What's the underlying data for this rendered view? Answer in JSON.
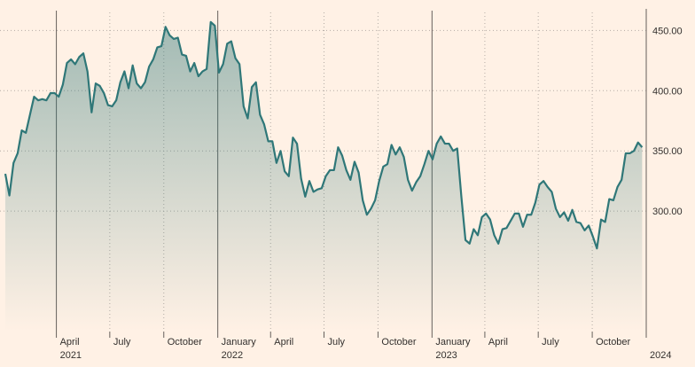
{
  "chart_data": {
    "type": "area",
    "title": "",
    "xlabel": "",
    "ylabel": "",
    "y_axis_side": "right",
    "ylim": [
      200,
      465
    ],
    "yticks": [
      {
        "value": 300,
        "label": "300.00"
      },
      {
        "value": 350,
        "label": "350.00"
      },
      {
        "value": 400,
        "label": "400.00"
      },
      {
        "value": 450,
        "label": "450.00"
      }
    ],
    "xlim": [
      "2021-01-01",
      "2024-01-01"
    ],
    "x_ticks": [
      {
        "date": "2021-04-01",
        "label": "April",
        "year": "2021"
      },
      {
        "date": "2021-07-01",
        "label": "July",
        "year": ""
      },
      {
        "date": "2021-10-01",
        "label": "October",
        "year": ""
      },
      {
        "date": "2022-01-01",
        "label": "January",
        "year": "2022"
      },
      {
        "date": "2022-04-01",
        "label": "April",
        "year": ""
      },
      {
        "date": "2022-07-01",
        "label": "July",
        "year": ""
      },
      {
        "date": "2022-10-01",
        "label": "October",
        "year": ""
      },
      {
        "date": "2023-01-01",
        "label": "January",
        "year": "2023"
      },
      {
        "date": "2023-04-01",
        "label": "April",
        "year": ""
      },
      {
        "date": "2023-07-01",
        "label": "July",
        "year": ""
      },
      {
        "date": "2023-10-01",
        "label": "October",
        "year": ""
      },
      {
        "date": "2024-01-01",
        "label": "",
        "year": "2024"
      }
    ],
    "series": [
      {
        "name": "",
        "color": "#2f7778",
        "points": [
          [
            "2021-01-04",
            331
          ],
          [
            "2021-01-11",
            313
          ],
          [
            "2021-01-18",
            340
          ],
          [
            "2021-01-25",
            348
          ],
          [
            "2021-02-01",
            367
          ],
          [
            "2021-02-08",
            365
          ],
          [
            "2021-02-15",
            380
          ],
          [
            "2021-02-22",
            395
          ],
          [
            "2021-03-01",
            392
          ],
          [
            "2021-03-08",
            393
          ],
          [
            "2021-03-15",
            392
          ],
          [
            "2021-03-22",
            398
          ],
          [
            "2021-03-29",
            398
          ],
          [
            "2021-04-05",
            395
          ],
          [
            "2021-04-12",
            405
          ],
          [
            "2021-04-19",
            423
          ],
          [
            "2021-04-26",
            426
          ],
          [
            "2021-05-03",
            422
          ],
          [
            "2021-05-10",
            428
          ],
          [
            "2021-05-17",
            431
          ],
          [
            "2021-05-24",
            416
          ],
          [
            "2021-05-31",
            382
          ],
          [
            "2021-06-07",
            406
          ],
          [
            "2021-06-14",
            404
          ],
          [
            "2021-06-21",
            398
          ],
          [
            "2021-06-28",
            388
          ],
          [
            "2021-07-05",
            387
          ],
          [
            "2021-07-12",
            392
          ],
          [
            "2021-07-19",
            407
          ],
          [
            "2021-07-26",
            416
          ],
          [
            "2021-08-02",
            402
          ],
          [
            "2021-08-09",
            421
          ],
          [
            "2021-08-16",
            406
          ],
          [
            "2021-08-23",
            402
          ],
          [
            "2021-08-30",
            407
          ],
          [
            "2021-09-06",
            420
          ],
          [
            "2021-09-13",
            426
          ],
          [
            "2021-09-20",
            436
          ],
          [
            "2021-09-27",
            437
          ],
          [
            "2021-10-04",
            453
          ],
          [
            "2021-10-11",
            446
          ],
          [
            "2021-10-18",
            443
          ],
          [
            "2021-10-25",
            444
          ],
          [
            "2021-11-01",
            430
          ],
          [
            "2021-11-08",
            429
          ],
          [
            "2021-11-15",
            416
          ],
          [
            "2021-11-22",
            423
          ],
          [
            "2021-11-29",
            412
          ],
          [
            "2021-12-06",
            416
          ],
          [
            "2021-12-13",
            418
          ],
          [
            "2021-12-20",
            457
          ],
          [
            "2021-12-27",
            454
          ],
          [
            "2022-01-03",
            415
          ],
          [
            "2022-01-10",
            422
          ],
          [
            "2022-01-17",
            439
          ],
          [
            "2022-01-24",
            441
          ],
          [
            "2022-01-31",
            427
          ],
          [
            "2022-02-07",
            422
          ],
          [
            "2022-02-14",
            387
          ],
          [
            "2022-02-21",
            377
          ],
          [
            "2022-02-28",
            403
          ],
          [
            "2022-03-07",
            407
          ],
          [
            "2022-03-14",
            380
          ],
          [
            "2022-03-21",
            372
          ],
          [
            "2022-03-28",
            358
          ],
          [
            "2022-04-04",
            358
          ],
          [
            "2022-04-11",
            340
          ],
          [
            "2022-04-18",
            350
          ],
          [
            "2022-04-25",
            333
          ],
          [
            "2022-05-02",
            329
          ],
          [
            "2022-05-09",
            361
          ],
          [
            "2022-05-16",
            356
          ],
          [
            "2022-05-23",
            327
          ],
          [
            "2022-05-30",
            312
          ],
          [
            "2022-06-06",
            325
          ],
          [
            "2022-06-13",
            316
          ],
          [
            "2022-06-20",
            318
          ],
          [
            "2022-06-27",
            319
          ],
          [
            "2022-07-04",
            329
          ],
          [
            "2022-07-11",
            334
          ],
          [
            "2022-07-18",
            334
          ],
          [
            "2022-07-25",
            353
          ],
          [
            "2022-08-01",
            346
          ],
          [
            "2022-08-08",
            334
          ],
          [
            "2022-08-15",
            326
          ],
          [
            "2022-08-22",
            341
          ],
          [
            "2022-08-29",
            332
          ],
          [
            "2022-09-05",
            309
          ],
          [
            "2022-09-12",
            297
          ],
          [
            "2022-09-19",
            302
          ],
          [
            "2022-09-26",
            309
          ],
          [
            "2022-10-03",
            325
          ],
          [
            "2022-10-10",
            337
          ],
          [
            "2022-10-17",
            339
          ],
          [
            "2022-10-24",
            355
          ],
          [
            "2022-10-31",
            347
          ],
          [
            "2022-11-07",
            353
          ],
          [
            "2022-11-14",
            345
          ],
          [
            "2022-11-21",
            326
          ],
          [
            "2022-11-28",
            317
          ],
          [
            "2022-12-05",
            324
          ],
          [
            "2022-12-12",
            329
          ],
          [
            "2022-12-19",
            339
          ],
          [
            "2022-12-26",
            350
          ],
          [
            "2023-01-02",
            343
          ],
          [
            "2023-01-09",
            356
          ],
          [
            "2023-01-16",
            362
          ],
          [
            "2023-01-23",
            356
          ],
          [
            "2023-01-30",
            356
          ],
          [
            "2023-02-06",
            350
          ],
          [
            "2023-02-13",
            352
          ],
          [
            "2023-02-20",
            312
          ],
          [
            "2023-02-27",
            276
          ],
          [
            "2023-03-06",
            273
          ],
          [
            "2023-03-13",
            285
          ],
          [
            "2023-03-20",
            280
          ],
          [
            "2023-03-27",
            295
          ],
          [
            "2023-04-03",
            298
          ],
          [
            "2023-04-10",
            293
          ],
          [
            "2023-04-17",
            280
          ],
          [
            "2023-04-24",
            273
          ],
          [
            "2023-05-01",
            285
          ],
          [
            "2023-05-08",
            286
          ],
          [
            "2023-05-15",
            292
          ],
          [
            "2023-05-22",
            298
          ],
          [
            "2023-05-29",
            298
          ],
          [
            "2023-06-05",
            287
          ],
          [
            "2023-06-12",
            297
          ],
          [
            "2023-06-19",
            297
          ],
          [
            "2023-06-26",
            307
          ],
          [
            "2023-07-03",
            322
          ],
          [
            "2023-07-10",
            325
          ],
          [
            "2023-07-17",
            320
          ],
          [
            "2023-07-24",
            316
          ],
          [
            "2023-07-31",
            302
          ],
          [
            "2023-08-07",
            295
          ],
          [
            "2023-08-14",
            299
          ],
          [
            "2023-08-21",
            292
          ],
          [
            "2023-08-28",
            301
          ],
          [
            "2023-09-04",
            291
          ],
          [
            "2023-09-11",
            290
          ],
          [
            "2023-09-18",
            284
          ],
          [
            "2023-09-25",
            288
          ],
          [
            "2023-10-02",
            279
          ],
          [
            "2023-10-09",
            269
          ],
          [
            "2023-10-16",
            293
          ],
          [
            "2023-10-23",
            291
          ],
          [
            "2023-10-30",
            310
          ],
          [
            "2023-11-06",
            309
          ],
          [
            "2023-11-13",
            320
          ],
          [
            "2023-11-20",
            326
          ],
          [
            "2023-11-27",
            348
          ],
          [
            "2023-12-04",
            348
          ],
          [
            "2023-12-11",
            350
          ],
          [
            "2023-12-18",
            357
          ],
          [
            "2023-12-25",
            353
          ]
        ]
      }
    ],
    "grid": {
      "horizontal": true,
      "vertical": true,
      "style": "dotted",
      "year_lines": "solid"
    },
    "colors": {
      "background": "#fff1e5",
      "line": "#2f7778",
      "fill": "#2f7778"
    }
  }
}
